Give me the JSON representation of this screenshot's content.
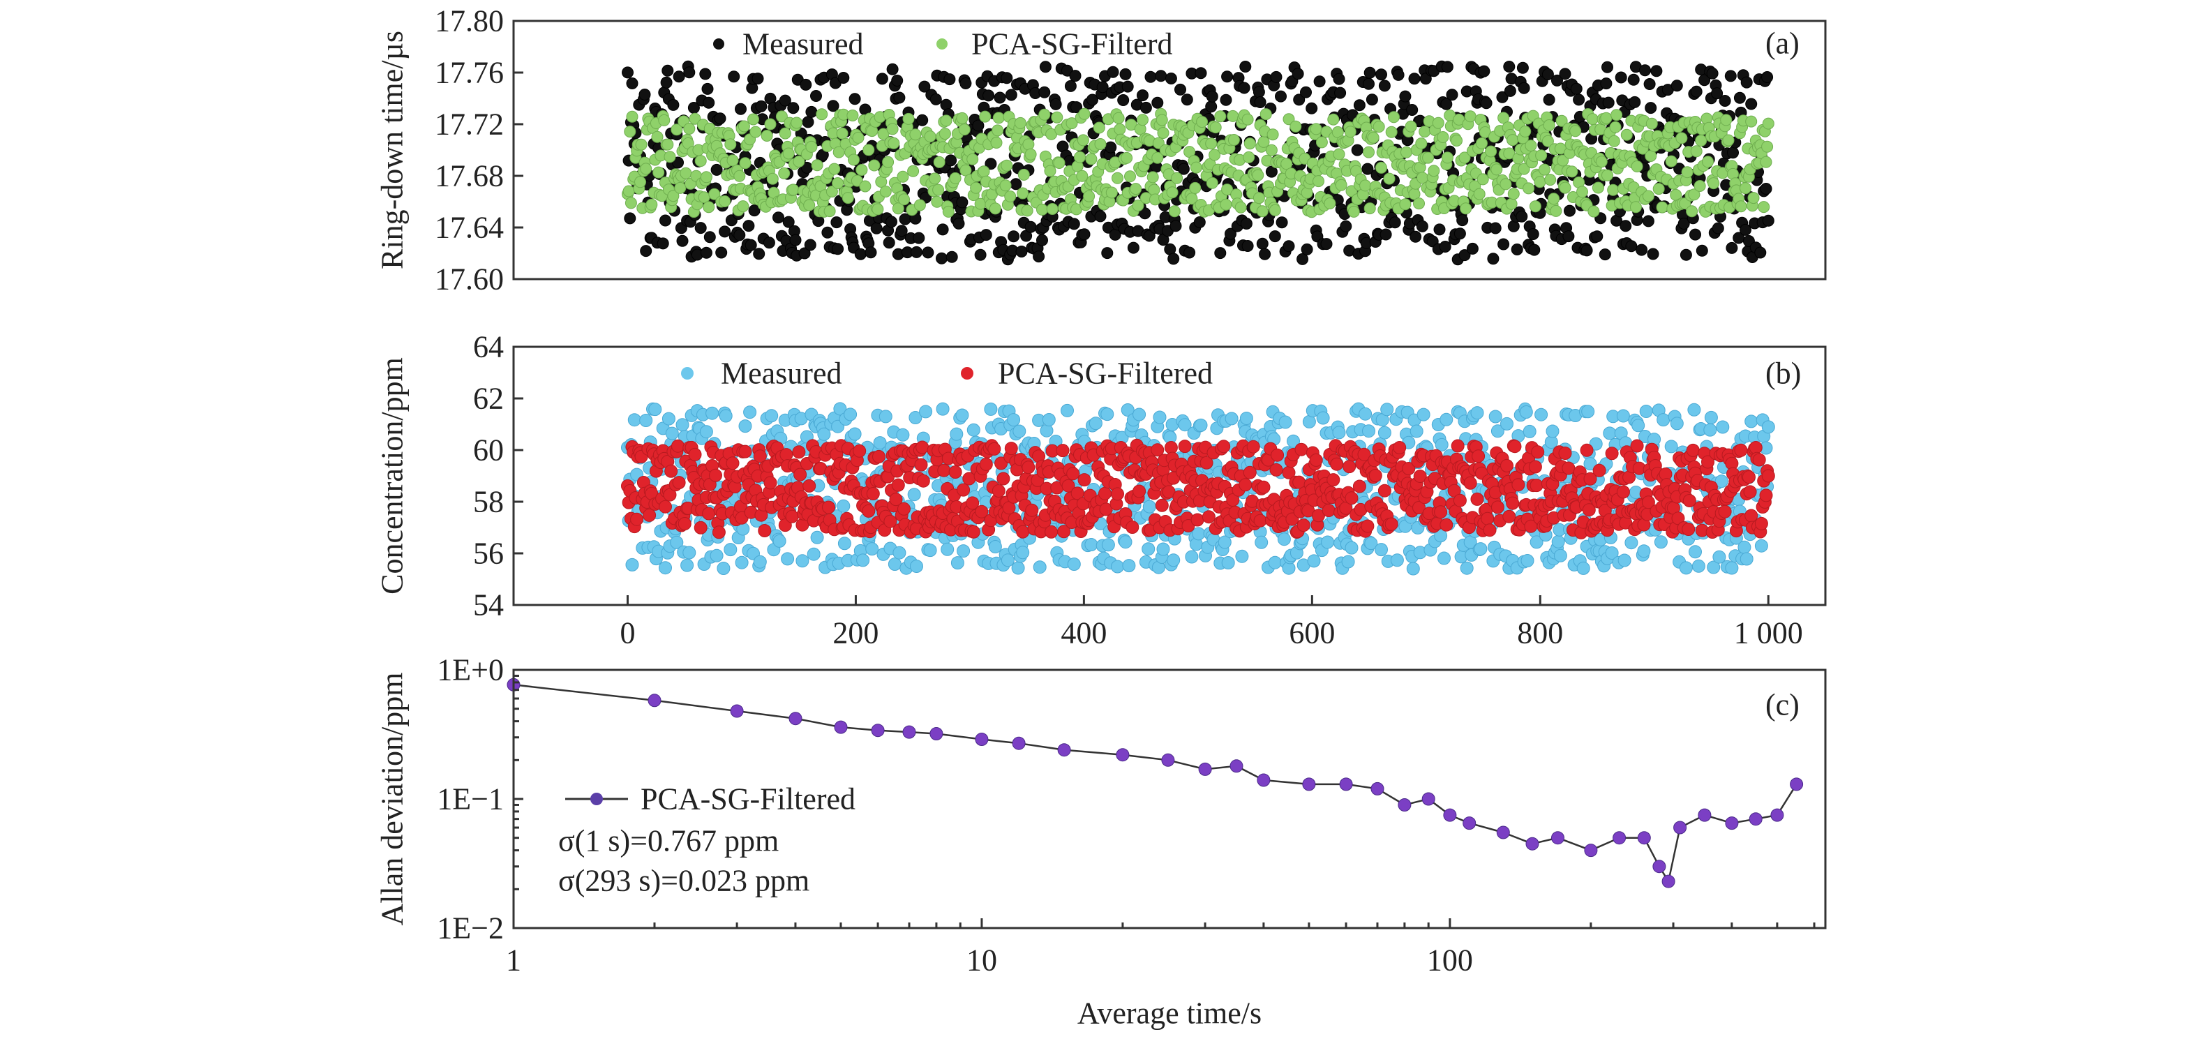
{
  "chart_data": [
    {
      "panel": "(a)",
      "type": "scatter",
      "ylabel": "Ring-down time/µs",
      "ylim": [
        17.6,
        17.8
      ],
      "yticks": [
        "17.80",
        "17.76",
        "17.72",
        "17.68",
        "17.64",
        "17.60"
      ],
      "xlim": [
        -100,
        1050
      ],
      "grid": false,
      "legend_position": "top-left",
      "series": [
        {
          "name": "Measured",
          "color": "#111111",
          "n_points": 1000,
          "x_range": [
            0,
            1000
          ],
          "mean": 17.69,
          "y_range": [
            17.615,
            17.765
          ],
          "note": "±0.075 µs scatter band"
        },
        {
          "name": "PCA-SG-Filterd",
          "color": "#8fd16a",
          "n_points": 1000,
          "x_range": [
            0,
            1000
          ],
          "mean": 17.69,
          "y_range": [
            17.652,
            17.728
          ],
          "note": "±0.038 µs scatter band"
        }
      ]
    },
    {
      "panel": "(b)",
      "type": "scatter",
      "ylabel": "Concentration/ppm",
      "ylim": [
        54,
        64
      ],
      "yticks": [
        "64",
        "62",
        "60",
        "58",
        "56",
        "54"
      ],
      "xlim": [
        -100,
        1050
      ],
      "xticks": [
        "0",
        "200",
        "400",
        "600",
        "800",
        "1 000"
      ],
      "xtick_values": [
        0,
        200,
        400,
        600,
        800,
        1000
      ],
      "grid": false,
      "legend_position": "top-left",
      "series": [
        {
          "name": "Measured",
          "color": "#6cc7ec",
          "n_points": 1000,
          "x_range": [
            0,
            1000
          ],
          "mean": 58.3,
          "y_range": [
            55.4,
            61.6
          ]
        },
        {
          "name": "PCA-SG-Filtered",
          "color": "#e0232b",
          "n_points": 1000,
          "x_range": [
            0,
            1000
          ],
          "mean": 58.0,
          "y_range": [
            56.8,
            60.2
          ]
        }
      ]
    },
    {
      "panel": "(c)",
      "type": "line",
      "xlabel": "Average time/s",
      "ylabel": "Allan deviation/ppm",
      "xscale": "log",
      "yscale": "log",
      "xlim": [
        1,
        600
      ],
      "ylim": [
        0.01,
        1
      ],
      "xticks": [
        "1",
        "10",
        "100"
      ],
      "xtick_values": [
        1,
        10,
        100
      ],
      "yticks": [
        "1E+0",
        "1E−1",
        "1E−2"
      ],
      "ytick_values": [
        1,
        0.1,
        0.01
      ],
      "grid": false,
      "legend_position": "bottom-left",
      "series": [
        {
          "name": "PCA-SG-Filtered",
          "color": "#7b3fc4",
          "line_color": "#333333",
          "x": [
            1,
            2,
            3,
            4,
            5,
            6,
            7,
            8,
            10,
            12,
            15,
            20,
            25,
            30,
            35,
            40,
            50,
            60,
            70,
            80,
            90,
            100,
            110,
            130,
            150,
            170,
            200,
            230,
            260,
            280,
            293,
            310,
            350,
            400,
            450,
            500,
            550
          ],
          "y": [
            0.767,
            0.58,
            0.48,
            0.42,
            0.36,
            0.34,
            0.33,
            0.32,
            0.29,
            0.27,
            0.24,
            0.22,
            0.2,
            0.17,
            0.18,
            0.14,
            0.13,
            0.13,
            0.12,
            0.09,
            0.1,
            0.075,
            0.065,
            0.055,
            0.045,
            0.05,
            0.04,
            0.05,
            0.05,
            0.03,
            0.023,
            0.06,
            0.075,
            0.065,
            0.07,
            0.075,
            0.13
          ]
        }
      ],
      "annotations": [
        "σ(1 s)=0.767 ppm",
        "σ(293 s)=0.023 ppm"
      ]
    }
  ]
}
